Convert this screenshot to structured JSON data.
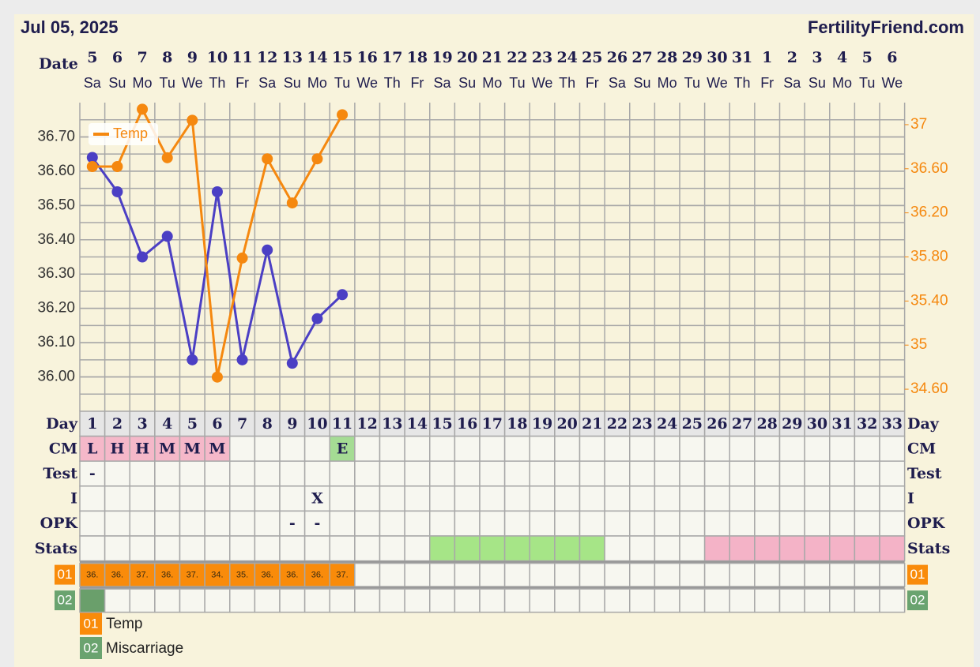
{
  "header": {
    "date": "Jul 05, 2025",
    "site": "FertilityFriend.com"
  },
  "chart_data": {
    "type": "line",
    "x_label": "Date",
    "categories": [
      "5",
      "6",
      "7",
      "8",
      "9",
      "10",
      "11",
      "12",
      "13",
      "14",
      "15",
      "16",
      "17",
      "18",
      "19",
      "20",
      "21",
      "22",
      "23",
      "24",
      "25",
      "26",
      "27",
      "28",
      "29",
      "30",
      "31",
      "1",
      "2",
      "3",
      "4",
      "5",
      "6"
    ],
    "weekdays": [
      "Sa",
      "Su",
      "Mo",
      "Tu",
      "We",
      "Th",
      "Fr",
      "Sa",
      "Su",
      "Mo",
      "Tu",
      "We",
      "Th",
      "Fr",
      "Sa",
      "Su",
      "Mo",
      "Tu",
      "We",
      "Th",
      "Fr",
      "Sa",
      "Su",
      "Mo",
      "Tu",
      "We",
      "Th",
      "Fr",
      "Sa",
      "Su",
      "Mo",
      "Tu",
      "We"
    ],
    "series": [
      {
        "color": "#4b3fc4",
        "values": [
          36.64,
          36.54,
          36.35,
          36.41,
          36.05,
          36.54,
          36.05,
          36.37,
          36.04,
          36.17,
          36.24,
          null,
          null,
          null,
          null,
          null,
          null,
          null,
          null,
          null,
          null,
          null,
          null,
          null,
          null,
          null,
          null,
          null,
          null,
          null,
          null,
          null,
          null
        ]
      },
      {
        "name": "Temp",
        "color": "#f5880f",
        "axis": "y2",
        "values": [
          36.62,
          36.62,
          37.14,
          36.7,
          37.04,
          34.71,
          35.79,
          36.69,
          36.29,
          36.69,
          37.09,
          null,
          null,
          null,
          null,
          null,
          null,
          null,
          null,
          null,
          null,
          null,
          null,
          null,
          null,
          null,
          null,
          null,
          null,
          null,
          null,
          null,
          null
        ]
      }
    ],
    "ylim": [
      35.9,
      36.8
    ],
    "yticks": [
      {
        "value": 36,
        "label": "36.00"
      },
      {
        "value": 36.1,
        "label": "36.10"
      },
      {
        "value": 36.2,
        "label": "36.20"
      },
      {
        "value": 36.3,
        "label": "36.30"
      },
      {
        "value": 36.4,
        "label": "36.40"
      },
      {
        "value": 36.5,
        "label": "36.50"
      },
      {
        "value": 36.6,
        "label": "36.60"
      },
      {
        "value": 36.7,
        "label": "36.70"
      }
    ],
    "y2lim": [
      34.4,
      37.2
    ],
    "y2ticks": [
      {
        "value": 34.6,
        "label": "34.60"
      },
      35,
      {
        "value": 35.4,
        "label": "35.40"
      },
      {
        "value": 35.8,
        "label": "35.80"
      },
      {
        "value": 36.2,
        "label": "36.20"
      },
      {
        "value": 36.6,
        "label": "36.60"
      },
      37
    ],
    "grid": true,
    "legend": "top-left"
  },
  "table": {
    "rows": [
      {
        "label": "Day",
        "cells": [
          1,
          2,
          3,
          4,
          5,
          6,
          7,
          8,
          9,
          10,
          11,
          12,
          13,
          14,
          15,
          16,
          17,
          18,
          19,
          20,
          21,
          22,
          23,
          24,
          25,
          26,
          27,
          28,
          29,
          30,
          31,
          32,
          33
        ]
      },
      {
        "label": "CM",
        "cells": [
          "L",
          "H",
          "H",
          "M",
          "M",
          "M",
          null,
          null,
          null,
          null,
          "E",
          null,
          null,
          null,
          null,
          null,
          null,
          null,
          null,
          null,
          null,
          null,
          null,
          null,
          null,
          null,
          null,
          null,
          null,
          null,
          null,
          null,
          null
        ],
        "fills": [
          "#f5b8c9",
          "#f5b8c9",
          "#f5b8c9",
          "#f5b8c9",
          "#f5b8c9",
          "#f5b8c9",
          null,
          null,
          null,
          null,
          "#a5dc94",
          null,
          null,
          null,
          null,
          null,
          null,
          null,
          null,
          null,
          null,
          null,
          null,
          null,
          null,
          null,
          null,
          null,
          null,
          null,
          null,
          null,
          null
        ]
      },
      {
        "label": "Test",
        "cells": [
          "-",
          null,
          null,
          null,
          null,
          null,
          null,
          null,
          null,
          null,
          null,
          null,
          null,
          null,
          null,
          null,
          null,
          null,
          null,
          null,
          null,
          null,
          null,
          null,
          null,
          null,
          null,
          null,
          null,
          null,
          null,
          null,
          null
        ]
      },
      {
        "label": "I",
        "cells": [
          null,
          null,
          null,
          null,
          null,
          null,
          null,
          null,
          null,
          "X",
          null,
          null,
          null,
          null,
          null,
          null,
          null,
          null,
          null,
          null,
          null,
          null,
          null,
          null,
          null,
          null,
          null,
          null,
          null,
          null,
          null,
          null,
          null
        ]
      },
      {
        "label": "OPK",
        "cells": [
          null,
          null,
          null,
          null,
          null,
          null,
          null,
          null,
          "-",
          "-",
          null,
          null,
          null,
          null,
          null,
          null,
          null,
          null,
          null,
          null,
          null,
          null,
          null,
          null,
          null,
          null,
          null,
          null,
          null,
          null,
          null,
          null,
          null
        ]
      },
      {
        "label": "Stats",
        "fills": [
          null,
          null,
          null,
          null,
          null,
          null,
          null,
          null,
          null,
          null,
          null,
          null,
          null,
          null,
          "#a6e587",
          "#a6e587",
          "#a6e587",
          "#a6e587",
          "#a6e587",
          "#a6e587",
          "#a6e587",
          null,
          null,
          null,
          null,
          "#f4b3c7",
          "#f4b3c7",
          "#f4b3c7",
          "#f4b3c7",
          "#f4b3c7",
          "#f4b3c7",
          "#f4b3c7",
          "#f4b3c7"
        ]
      }
    ],
    "custom_rows": [
      {
        "code": "01",
        "name": "Temp",
        "color": "#f98b0a",
        "cells": [
          "36.",
          "36.",
          "37.",
          "36.",
          "37.",
          "34.",
          "35.",
          "36.",
          "36.",
          "36.",
          "37.",
          null,
          null,
          null,
          null,
          null,
          null,
          null,
          null,
          null,
          null,
          null,
          null,
          null,
          null,
          null,
          null,
          null,
          null,
          null,
          null,
          null,
          null
        ],
        "fills": [
          "#f98b0a",
          "#f98b0a",
          "#f98b0a",
          "#f98b0a",
          "#f98b0a",
          "#f98b0a",
          "#f98b0a",
          "#f98b0a",
          "#f98b0a",
          "#f98b0a",
          "#f98b0a",
          null,
          null,
          null,
          null,
          null,
          null,
          null,
          null,
          null,
          null,
          null,
          null,
          null,
          null,
          null,
          null,
          null,
          null,
          null,
          null,
          null,
          null
        ]
      },
      {
        "code": "02",
        "name": "Miscarriage",
        "color": "#6aa36f",
        "fills": [
          "#6a9f6b",
          null,
          null,
          null,
          null,
          null,
          null,
          null,
          null,
          null,
          null,
          null,
          null,
          null,
          null,
          null,
          null,
          null,
          null,
          null,
          null,
          null,
          null,
          null,
          null,
          null,
          null,
          null,
          null,
          null,
          null,
          null,
          null
        ]
      }
    ]
  }
}
